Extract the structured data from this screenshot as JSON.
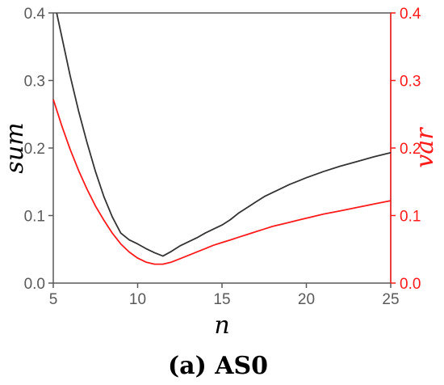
{
  "chart_data": {
    "type": "line",
    "caption_prefix": "(a)",
    "caption_name": "AS0",
    "xlabel": "n",
    "ylabel_left": "sum",
    "ylabel_right": "var",
    "xlim": [
      5,
      25
    ],
    "ylim_left": [
      0.0,
      0.4
    ],
    "ylim_right": [
      0.0,
      0.4
    ],
    "x_ticks": [
      "5",
      "10",
      "15",
      "20",
      "25"
    ],
    "y_ticks_left": [
      "0.0",
      "0.1",
      "0.2",
      "0.3",
      "0.4"
    ],
    "y_ticks_right": [
      "0.0",
      "0.1",
      "0.2",
      "0.3",
      "0.4"
    ],
    "grid": false,
    "colors": {
      "left_axis": "#595959",
      "right_axis": "#ff1a1a",
      "sum_line": "#333333",
      "var_line": "#ff1a1a"
    },
    "series": [
      {
        "axis": "left",
        "color": "#333333",
        "x": [
          5.2,
          5.5,
          6,
          6.5,
          7,
          7.5,
          8,
          8.5,
          9,
          9.5,
          10,
          10.5,
          11,
          11.5,
          12,
          12.5,
          13,
          13.5,
          14,
          14.5,
          15,
          15.5,
          16,
          16.5,
          17,
          17.5,
          18,
          18.5,
          19,
          19.5,
          20,
          21,
          22,
          23,
          24,
          25
        ],
        "y": [
          0.4,
          0.365,
          0.307,
          0.255,
          0.208,
          0.165,
          0.128,
          0.098,
          0.074,
          0.064,
          0.058,
          0.051,
          0.045,
          0.04,
          0.047,
          0.055,
          0.061,
          0.067,
          0.074,
          0.08,
          0.086,
          0.094,
          0.104,
          0.112,
          0.12,
          0.128,
          0.134,
          0.14,
          0.146,
          0.151,
          0.156,
          0.165,
          0.173,
          0.18,
          0.187,
          0.193
        ]
      },
      {
        "axis": "right",
        "color": "#ff1a1a",
        "x": [
          5.0,
          5.5,
          6,
          6.5,
          7,
          7.5,
          8,
          8.5,
          9,
          9.5,
          10,
          10.5,
          11,
          11.5,
          12,
          12.5,
          13,
          13.5,
          14,
          14.5,
          15,
          15.5,
          16,
          16.5,
          17,
          17.5,
          18,
          18.5,
          19,
          19.5,
          20,
          21,
          22,
          23,
          24,
          25
        ],
        "y": [
          0.272,
          0.233,
          0.198,
          0.167,
          0.139,
          0.114,
          0.093,
          0.074,
          0.058,
          0.046,
          0.037,
          0.031,
          0.028,
          0.028,
          0.031,
          0.036,
          0.041,
          0.046,
          0.051,
          0.056,
          0.06,
          0.064,
          0.068,
          0.072,
          0.076,
          0.08,
          0.084,
          0.087,
          0.09,
          0.093,
          0.096,
          0.102,
          0.107,
          0.112,
          0.117,
          0.122
        ]
      }
    ]
  }
}
